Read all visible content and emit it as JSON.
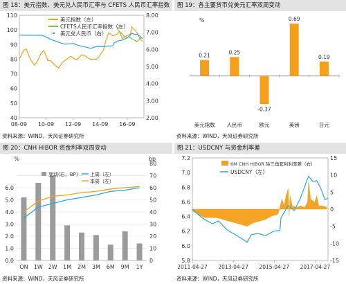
{
  "colors": {
    "orange": "#f5a01a",
    "green": "#7dc241",
    "blue": "#2aa7d9",
    "gray": "#9b9b9b",
    "axis": "#888888",
    "grid": "#dddddd"
  },
  "panels": [
    {
      "title": "图 18：美元指数、美元兑人民币汇率与 CFETS 人民币汇率指数",
      "source": "资料来源：WIND，天风证券研究所"
    },
    {
      "title": "图 19：各主要货币兑美元汇率双周变动",
      "source": "资料来源：WIND，天风证券研究所"
    },
    {
      "title": "图 20：CNH HIBOR 资金利率双周变动",
      "source": "资料来源：WIND，天风证券研究所"
    },
    {
      "title": "图 21：USDCNY 与资金利率差",
      "source": "资料来源：WIND，天风证券研究所"
    }
  ],
  "chart_data": [
    {
      "type": "line",
      "left_axis": {
        "ticks": [
          "110",
          "100",
          "90",
          "80",
          "70",
          "60",
          "50",
          "40"
        ],
        "ylim": [
          40,
          110
        ]
      },
      "right_axis": {
        "ticks": [
          "8.00",
          "7.00",
          "6.00",
          "5.00",
          "4.00",
          "3.00",
          "2.00"
        ],
        "ylim": [
          2,
          8
        ]
      },
      "x_ticks": [
        "08-09",
        "10-09",
        "12-09",
        "14-09",
        "16-09"
      ],
      "xlim": [
        2008.7,
        2017.9
      ],
      "legend": [
        "美元指数（左）",
        "CFETS人民币汇率指数（左）",
        "美元兑人民币（右）"
      ],
      "series": [
        {
          "name": "美元指数（左）",
          "axis": "left",
          "color": "orange",
          "x": [
            2008.7,
            2009.0,
            2009.2,
            2009.5,
            2009.8,
            2010.0,
            2010.3,
            2010.5,
            2010.8,
            2011.0,
            2011.3,
            2011.6,
            2011.9,
            2012.2,
            2012.5,
            2012.8,
            2013.0,
            2013.3,
            2013.6,
            2013.9,
            2014.2,
            2014.4,
            2014.6,
            2014.9,
            2015.1,
            2015.3,
            2015.6,
            2015.9,
            2016.1,
            2016.3,
            2016.6,
            2016.9,
            2017.0,
            2017.2,
            2017.4,
            2017.6,
            2017.8
          ],
          "y": [
            80,
            86,
            87,
            80,
            76,
            78,
            84,
            86,
            79,
            79,
            76,
            74,
            78,
            80,
            82,
            80,
            80,
            83,
            82,
            80,
            80,
            80,
            82,
            86,
            93,
            98,
            96,
            97,
            99,
            94,
            96,
            97,
            102,
            100,
            98,
            94,
            92
          ]
        },
        {
          "name": "CFETS人民币汇率指数（左）",
          "axis": "left",
          "color": "green",
          "x": [
            2015.9,
            2016.0,
            2016.2,
            2016.4,
            2016.6,
            2016.8,
            2017.0,
            2017.2,
            2017.4,
            2017.6,
            2017.8
          ],
          "y": [
            102,
            100,
            98,
            96,
            95,
            95,
            94,
            93,
            92,
            94,
            95
          ]
        },
        {
          "name": "美元兑人民币（右）",
          "axis": "right",
          "color": "blue",
          "x": [
            2008.7,
            2009.0,
            2009.5,
            2010.0,
            2010.4,
            2010.5,
            2010.8,
            2011.0,
            2011.5,
            2012.0,
            2012.4,
            2012.7,
            2013.0,
            2013.5,
            2014.0,
            2014.2,
            2014.5,
            2014.9,
            2015.3,
            2015.6,
            2015.7,
            2016.0,
            2016.3,
            2016.6,
            2016.9,
            2017.0,
            2017.2,
            2017.4,
            2017.6,
            2017.8
          ],
          "y": [
            6.84,
            6.83,
            6.83,
            6.83,
            6.83,
            6.78,
            6.68,
            6.59,
            6.45,
            6.31,
            6.32,
            6.34,
            6.25,
            6.16,
            6.06,
            6.13,
            6.17,
            6.16,
            6.2,
            6.21,
            6.38,
            6.5,
            6.55,
            6.65,
            6.83,
            6.95,
            6.88,
            6.89,
            6.78,
            6.63
          ]
        }
      ]
    },
    {
      "type": "bar",
      "y_unit": "%",
      "categories": [
        "美元指数",
        "人民币",
        "欧元",
        "英镑",
        "日元"
      ],
      "values": [
        0.21,
        0.25,
        -0.37,
        0.69,
        0.19
      ],
      "ylim": [
        -0.55,
        0.8
      ]
    },
    {
      "type": "bar",
      "left_unit": "%",
      "right_unit": "bp",
      "categories": [
        "ON",
        "1W",
        "2W",
        "1M",
        "2M",
        "3M",
        "6M",
        "9M",
        "1Y"
      ],
      "left_ticks": [
        "6.0",
        "5.0",
        "4.0",
        "3.0",
        "2.0",
        "1.0",
        "0.0"
      ],
      "right_ticks": [
        "80",
        "70",
        "60",
        "50",
        "40",
        "30",
        "20",
        "10",
        "0"
      ],
      "legend": [
        "变动(右，BP)",
        "上周（左）",
        "本周（左）"
      ],
      "series": [
        {
          "name": "变动(右，BP)",
          "type": "bar",
          "axis": "right",
          "color": "gray",
          "values": [
            52,
            64,
            70,
            29,
            23,
            21,
            13,
            24,
            14
          ]
        },
        {
          "name": "上周（左）",
          "type": "line",
          "axis": "left",
          "color": "blue",
          "values": [
            3.5,
            4.4,
            4.7,
            5.0,
            5.2,
            5.4,
            5.7,
            5.8,
            6.0
          ]
        },
        {
          "name": "本周（左）",
          "type": "line",
          "axis": "left",
          "color": "orange",
          "values": [
            4.0,
            4.9,
            5.3,
            5.4,
            5.6,
            5.7,
            5.9,
            6.0,
            6.1
          ]
        }
      ],
      "left_ylim": [
        0,
        8
      ],
      "right_ylim": [
        0,
        80
      ]
    },
    {
      "type": "area",
      "left_ticks": [
        "7.2",
        "7.0",
        "6.8",
        "6.6",
        "6.4",
        "6.2",
        "6.0",
        "5.8"
      ],
      "right_ticks": [
        "15",
        "10",
        "5",
        "0",
        "-5",
        "-10",
        "-15"
      ],
      "x_ticks": [
        "2011-04-27",
        "2013-04-27",
        "2015-04-27",
        "2017-04-27"
      ],
      "xlim": [
        2011.32,
        2017.95
      ],
      "left_ylim": [
        5.8,
        7.2
      ],
      "right_ylim": [
        -15,
        15
      ],
      "legend": [
        "6M CNH HIBOR 除三角套利利率差（右）",
        "USDCNY（左）"
      ],
      "series": [
        {
          "name": "6M CNH HIBOR 除三角套利利率差（右）",
          "type": "area",
          "axis": "right",
          "color": "orange",
          "x": [
            2011.32,
            2011.6,
            2011.9,
            2012.2,
            2012.5,
            2012.8,
            2013.1,
            2013.4,
            2013.7,
            2014.0,
            2014.3,
            2014.6,
            2014.9,
            2015.2,
            2015.5,
            2015.7,
            2015.8,
            2015.9,
            2016.0,
            2016.05,
            2016.1,
            2016.2,
            2016.4,
            2016.6,
            2016.8,
            2016.95,
            2017.0,
            2017.1,
            2017.3,
            2017.4,
            2017.5,
            2017.7,
            2017.9
          ],
          "y": [
            -0.5,
            -1.5,
            -2.5,
            -2.5,
            -2.5,
            -3,
            -3.5,
            -4,
            -4.5,
            -5,
            -4,
            -3.5,
            -3,
            -2,
            -1.5,
            3,
            1,
            4,
            6,
            -2,
            4,
            1,
            0.5,
            1,
            0.5,
            2,
            8,
            3,
            2,
            4,
            1,
            1,
            0.5
          ]
        },
        {
          "name": "USDCNY（左）",
          "type": "line",
          "axis": "left",
          "color": "blue",
          "x": [
            2011.32,
            2011.8,
            2012.3,
            2012.6,
            2013.0,
            2013.5,
            2014.0,
            2014.2,
            2014.5,
            2014.9,
            2015.3,
            2015.6,
            2015.65,
            2016.0,
            2016.3,
            2016.6,
            2016.9,
            2017.0,
            2017.2,
            2017.4,
            2017.6,
            2017.8,
            2017.95
          ],
          "y": [
            6.5,
            6.38,
            6.3,
            6.34,
            6.22,
            6.14,
            6.05,
            6.15,
            6.17,
            6.14,
            6.2,
            6.21,
            6.38,
            6.55,
            6.48,
            6.65,
            6.88,
            6.95,
            6.88,
            6.89,
            6.78,
            6.63,
            6.65
          ]
        }
      ]
    }
  ]
}
